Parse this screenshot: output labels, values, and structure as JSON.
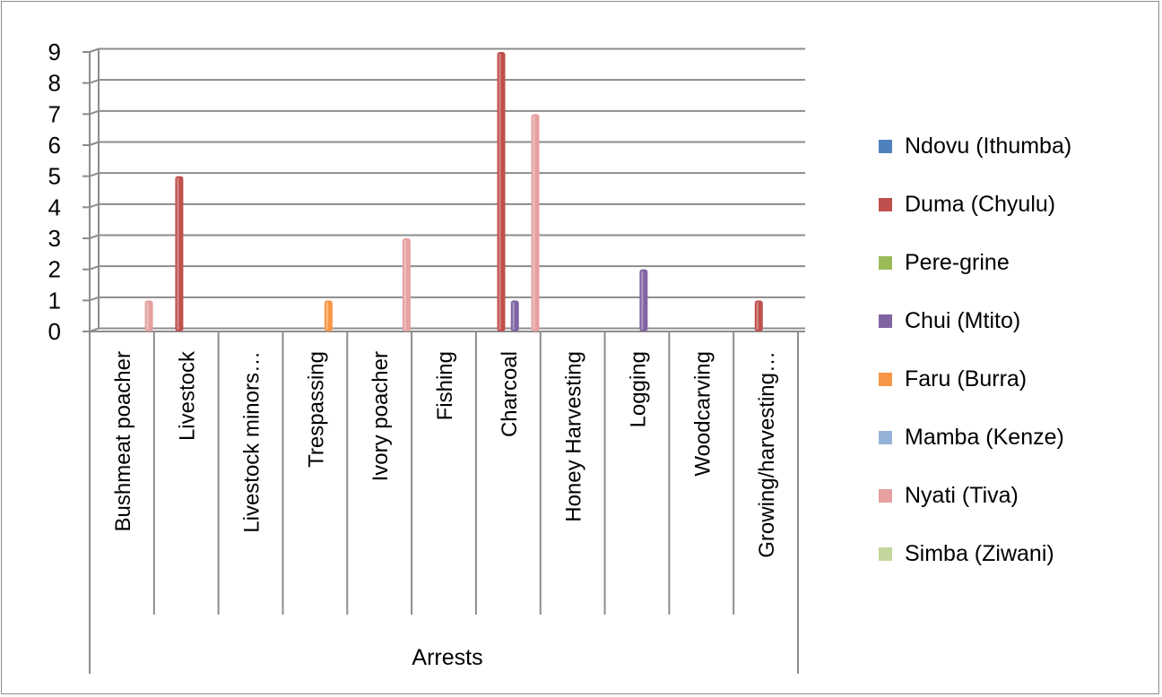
{
  "chart_data": {
    "type": "bar",
    "xlabel": "Arrests",
    "ylim": [
      0,
      9
    ],
    "yticks": [
      "0",
      "1",
      "2",
      "3",
      "4",
      "5",
      "6",
      "7",
      "8",
      "9"
    ],
    "grid": true,
    "legend_position": "right",
    "categories": [
      "Bushmeat poacher",
      "Livestock",
      "Livestock minors…",
      "Trespassing",
      "Ivory poacher",
      "Fishing",
      "Charcoal",
      "Honey Harvesting",
      "Logging",
      "Woodcarving",
      "Growing/harvesting…"
    ],
    "series": [
      {
        "name": "Ndovu (Ithumba)",
        "color": "#4f81bd",
        "values": [
          0,
          0,
          0,
          0,
          0,
          0,
          0,
          0,
          0,
          0,
          0
        ]
      },
      {
        "name": "Duma (Chyulu)",
        "color": "#c0504d",
        "values": [
          0,
          5,
          0,
          0,
          0,
          0,
          9,
          0,
          0,
          0,
          1
        ]
      },
      {
        "name": "Pere-grine",
        "color": "#9bbb59",
        "values": [
          0,
          0,
          0,
          0,
          0,
          0,
          0,
          0,
          0,
          0,
          0
        ]
      },
      {
        "name": "Chui (Mtito)",
        "color": "#8064a2",
        "values": [
          0,
          0,
          0,
          0,
          0,
          0,
          1,
          0,
          2,
          0,
          0
        ]
      },
      {
        "name": "Faru (Burra)",
        "color": "#f79646",
        "values": [
          0,
          0,
          0,
          1,
          0,
          0,
          0,
          0,
          0,
          0,
          0
        ]
      },
      {
        "name": "Mamba (Kenze)",
        "color": "#95b3d7",
        "values": [
          0,
          0,
          0,
          0,
          0,
          0,
          0,
          0,
          0,
          0,
          0
        ]
      },
      {
        "name": "Nyati (Tiva)",
        "color": "#e6a0a0",
        "values": [
          1,
          0,
          0,
          0,
          3,
          0,
          7,
          0,
          0,
          0,
          0
        ]
      },
      {
        "name": "Simba (Ziwani)",
        "color": "#c3d69b",
        "values": [
          0,
          0,
          0,
          0,
          0,
          0,
          0,
          0,
          0,
          0,
          0
        ]
      }
    ]
  }
}
